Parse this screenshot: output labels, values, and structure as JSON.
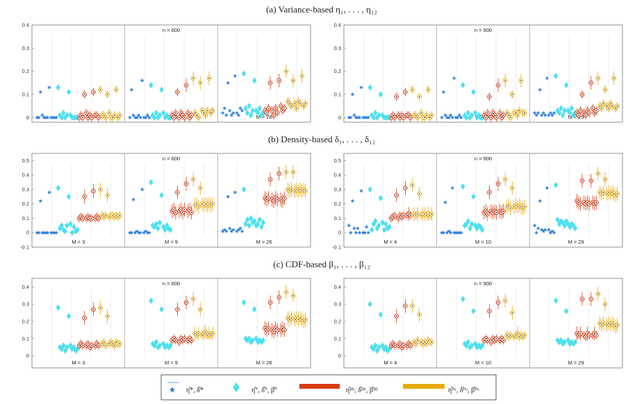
{
  "colors": {
    "star": "#2f7fe0",
    "diamond": "#4fe0ee",
    "bb": "#d93b14",
    "pu": "#e8ab0a",
    "grid": "#e2e2e2",
    "separator": "#999999",
    "axis": "#777777"
  },
  "chart_data": {
    "type": "scatter",
    "ylim_rows": [
      [
        -0.02,
        0.4
      ],
      [
        -0.1,
        0.55
      ],
      [
        -0.07,
        0.45
      ]
    ],
    "yticks_rows": [
      [
        "0",
        "0.1",
        "0.2",
        "0.3",
        "0.4"
      ],
      [
        "-0.1",
        "0",
        "0.1",
        "0.2",
        "0.3",
        "0.4",
        "0.5"
      ],
      [
        "0",
        "0.1",
        "0.2",
        "0.3",
        "0.4"
      ]
    ],
    "titles": [
      "(a) Variance-based η₁, . . . , η₁₂",
      "(b) Density-based δ₁, . . . , δ₁₂",
      "(c) CDF-based β₁, . . . , β₁₂"
    ],
    "panels": [
      {
        "n": "n = 600",
        "M": [
          "M = 3",
          "M = 9",
          "M = 26"
        ]
      },
      {
        "n": "n = 900",
        "M": [
          "M = 4",
          "M = 10",
          "M = 29"
        ]
      }
    ],
    "rows": [
      {
        "name": "variance",
        "cols": [
          {
            "star": [
              0,
              0,
              0.11,
              0.01,
              0,
              0,
              0,
              0.13,
              0,
              0,
              0,
              0
            ],
            "diamond": [
              0.13,
              0.01,
              0,
              0.02,
              0,
              0.01,
              0.11,
              0.01,
              0,
              0,
              0,
              0
            ],
            "bb": [
              0,
              0.01,
              0,
              0.1,
              0.02,
              0,
              0.01,
              0,
              0.11,
              0.01,
              0.01,
              0
            ],
            "pu": [
              0.12,
              0.01,
              0.01,
              0,
              0.1,
              0.02,
              0,
              0,
              0.01,
              0.12,
              0,
              0.01
            ]
          },
          {
            "star": [
              0,
              0.12,
              0.01,
              0,
              0,
              0.01,
              0,
              0.16,
              0,
              0,
              0.01,
              0
            ],
            "diamond": [
              0.14,
              0.01,
              0,
              0.02,
              0,
              0.01,
              0.12,
              0.02,
              0,
              0.01,
              0,
              0
            ],
            "bb": [
              0.01,
              0,
              0.02,
              0.11,
              0,
              0.02,
              0.01,
              0,
              0.14,
              0.02,
              0,
              0.01
            ],
            "pu": [
              0.17,
              0.02,
              0.01,
              0,
              0.15,
              0.03,
              0.02,
              0.01,
              0.03,
              0.17,
              0.02,
              0.03
            ]
          },
          {
            "star": [
              0.02,
              0.04,
              0.01,
              0.15,
              0.03,
              0.01,
              0.02,
              0.18,
              0.02,
              0.01,
              0.04,
              0.03
            ],
            "diamond": [
              0.19,
              0.04,
              0.02,
              0.05,
              0.01,
              0.03,
              0.16,
              0.03,
              0.02,
              0.04,
              0.01,
              0.02
            ],
            "bb": [
              0.03,
              0.02,
              0.04,
              0.15,
              0.03,
              0.01,
              0.04,
              0.02,
              0.16,
              0.05,
              0.03,
              0.04
            ],
            "pu": [
              0.2,
              0.07,
              0.06,
              0.05,
              0.16,
              0.06,
              0.04,
              0.07,
              0.06,
              0.18,
              0.05,
              0.06
            ]
          }
        ]
      },
      {
        "name": "variance",
        "cols": [
          {
            "star": [
              0,
              0,
              0.1,
              0.01,
              0,
              0,
              0,
              0.13,
              0,
              0,
              0,
              0
            ],
            "diamond": [
              0.13,
              0.01,
              0,
              0.02,
              0,
              0.01,
              0.1,
              0.01,
              0,
              0,
              0,
              0
            ],
            "bb": [
              0,
              0.01,
              0,
              0.09,
              0.01,
              0,
              0.01,
              0,
              0.11,
              0.01,
              0.01,
              0
            ],
            "pu": [
              0.12,
              0.01,
              0.01,
              0,
              0.09,
              0.02,
              0,
              0,
              0.01,
              0.12,
              0,
              0.01
            ]
          },
          {
            "star": [
              0,
              0.11,
              0.01,
              0,
              0,
              0.01,
              0,
              0.17,
              0,
              0,
              0.01,
              0
            ],
            "diamond": [
              0.14,
              0.01,
              0,
              0.02,
              0,
              0.01,
              0.11,
              0.02,
              0,
              0.01,
              0,
              0
            ],
            "bb": [
              0.01,
              0,
              0.02,
              0.09,
              0,
              0.02,
              0.01,
              0,
              0.14,
              0.02,
              0,
              0.01
            ],
            "pu": [
              0.16,
              0.02,
              0.01,
              0,
              0.1,
              0.02,
              0.02,
              0.01,
              0.03,
              0.16,
              0.02,
              0.02
            ]
          },
          {
            "star": [
              0.02,
              0.01,
              0.02,
              0.12,
              0.01,
              0.02,
              0.01,
              0.17,
              0.01,
              0.02,
              0.01,
              0.02
            ],
            "diamond": [
              0.18,
              0.03,
              0.02,
              0.04,
              0.01,
              0.03,
              0.14,
              0.03,
              0.02,
              0.04,
              0.01,
              0.02
            ],
            "bb": [
              0.02,
              0.01,
              0.03,
              0.1,
              0.02,
              0.01,
              0.03,
              0.02,
              0.15,
              0.04,
              0.02,
              0.03
            ],
            "pu": [
              0.17,
              0.05,
              0.04,
              0.06,
              0.12,
              0.05,
              0.04,
              0.06,
              0.05,
              0.17,
              0.04,
              0.05
            ]
          }
        ]
      },
      {
        "name": "density",
        "cols": [
          {
            "star": [
              0,
              0,
              0.22,
              0,
              0,
              0,
              0,
              0.28,
              0,
              0,
              0,
              0
            ],
            "diamond": [
              0.31,
              0.03,
              0.05,
              0.02,
              0.01,
              0.05,
              0.25,
              0.06,
              0,
              0.04,
              0.01,
              0.02
            ],
            "bb": [
              0.1,
              0.11,
              0.1,
              0.25,
              0.1,
              0.11,
              0.1,
              0.1,
              0.29,
              0.1,
              0.11,
              0.1
            ],
            "pu": [
              0.3,
              0.12,
              0.11,
              0.12,
              0.26,
              0.11,
              0.12,
              0.12,
              0.11,
              0.12,
              0.11,
              0.12
            ]
          },
          {
            "star": [
              0,
              0,
              0.23,
              0,
              0.01,
              0,
              0,
              0.3,
              0,
              0.01,
              0,
              0
            ],
            "diamond": [
              0.35,
              0.05,
              0.04,
              0.06,
              0.03,
              0.07,
              0.26,
              0.04,
              0.02,
              0.05,
              0.03,
              0.02
            ],
            "bb": [
              0.15,
              0.16,
              0.14,
              0.28,
              0.15,
              0.16,
              0.14,
              0.16,
              0.34,
              0.15,
              0.16,
              0.14
            ],
            "pu": [
              0.37,
              0.19,
              0.2,
              0.18,
              0.31,
              0.2,
              0.19,
              0.2,
              0.19,
              0.2,
              0.19,
              0.2
            ]
          },
          {
            "star": [
              0.01,
              0.02,
              0.01,
              0.25,
              0.03,
              0.01,
              0.02,
              0.28,
              0.01,
              0.02,
              0.03,
              0.01
            ],
            "diamond": [
              0.3,
              0.06,
              0.09,
              0.05,
              0.1,
              0.07,
              0.08,
              0.05,
              0.06,
              0.09,
              0.04,
              0.07
            ],
            "bb": [
              0.24,
              0.23,
              0.24,
              0.37,
              0.23,
              0.22,
              0.24,
              0.23,
              0.41,
              0.23,
              0.22,
              0.24
            ],
            "pu": [
              0.42,
              0.3,
              0.29,
              0.3,
              0.42,
              0.29,
              0.3,
              0.29,
              0.3,
              0.29,
              0.3,
              0.29
            ]
          }
        ]
      },
      {
        "name": "density",
        "cols": [
          {
            "star": [
              0.05,
              0,
              0.22,
              0.03,
              0,
              0.03,
              0,
              0.29,
              0,
              0,
              0.04,
              0
            ],
            "diamond": [
              0.3,
              0.02,
              0.06,
              0.08,
              0.03,
              0.05,
              0.24,
              0.07,
              0.02,
              0.06,
              0.03,
              0.04
            ],
            "bb": [
              0.1,
              0.11,
              0.12,
              0.26,
              0.1,
              0.12,
              0.11,
              0.12,
              0.31,
              0.12,
              0.13,
              0.12
            ],
            "pu": [
              0.33,
              0.13,
              0.12,
              0.13,
              0.27,
              0.12,
              0.13,
              0.13,
              0.12,
              0.13,
              0.12,
              0.13
            ]
          },
          {
            "star": [
              0,
              0,
              0.21,
              0,
              0.01,
              0,
              0.31,
              0,
              0,
              0,
              0,
              0
            ],
            "diamond": [
              0.32,
              0.05,
              0.06,
              0.08,
              0.03,
              0.06,
              0.25,
              0.05,
              0.03,
              0.05,
              0.04,
              0.02
            ],
            "bb": [
              0.14,
              0.15,
              0.13,
              0.28,
              0.15,
              0.14,
              0.15,
              0.14,
              0.34,
              0.15,
              0.14,
              0.15
            ],
            "pu": [
              0.37,
              0.18,
              0.19,
              0.17,
              0.31,
              0.18,
              0.19,
              0.18,
              0.19,
              0.18,
              0.17,
              0.18
            ]
          },
          {
            "star": [
              0.05,
              0,
              0.03,
              0.22,
              0.02,
              0.01,
              0.02,
              0.31,
              0.02,
              0,
              0.01,
              0
            ],
            "diamond": [
              0.33,
              0.09,
              0.06,
              0.08,
              0.07,
              0.05,
              0.08,
              0.06,
              0.04,
              0.06,
              0.05,
              0.03
            ],
            "bb": [
              0.22,
              0.21,
              0.2,
              0.36,
              0.21,
              0.2,
              0.21,
              0.2,
              0.36,
              0.21,
              0.2,
              0.21
            ],
            "pu": [
              0.41,
              0.28,
              0.27,
              0.28,
              0.37,
              0.27,
              0.28,
              0.27,
              0.28,
              0.27,
              0.26,
              0.27
            ]
          }
        ]
      },
      {
        "name": "cdf",
        "cols": [
          {
            "diamond": [
              0.28,
              0.05,
              0.04,
              0.06,
              0.03,
              0.05,
              0.23,
              0.06,
              0.04,
              0.05,
              0.03,
              0.04
            ],
            "bb": [
              0.06,
              0.07,
              0.06,
              0.22,
              0.06,
              0.07,
              0.05,
              0.06,
              0.27,
              0.06,
              0.07,
              0.06
            ],
            "pu": [
              0.28,
              0.07,
              0.08,
              0.06,
              0.23,
              0.07,
              0.08,
              0.07,
              0.06,
              0.08,
              0.07,
              0.07
            ]
          },
          {
            "diamond": [
              0.32,
              0.07,
              0.06,
              0.08,
              0.05,
              0.06,
              0.27,
              0.07,
              0.05,
              0.06,
              0.05,
              0.06
            ],
            "bb": [
              0.09,
              0.1,
              0.09,
              0.27,
              0.08,
              0.1,
              0.09,
              0.1,
              0.31,
              0.09,
              0.1,
              0.09
            ],
            "pu": [
              0.33,
              0.13,
              0.12,
              0.13,
              0.27,
              0.12,
              0.13,
              0.14,
              0.12,
              0.13,
              0.12,
              0.13
            ]
          },
          {
            "diamond": [
              0.31,
              0.1,
              0.09,
              0.1,
              0.08,
              0.09,
              0.27,
              0.1,
              0.08,
              0.09,
              0.08,
              0.09
            ],
            "bb": [
              0.16,
              0.15,
              0.16,
              0.31,
              0.15,
              0.14,
              0.16,
              0.15,
              0.34,
              0.15,
              0.16,
              0.15
            ],
            "pu": [
              0.37,
              0.22,
              0.21,
              0.22,
              0.35,
              0.21,
              0.22,
              0.21,
              0.22,
              0.21,
              0.2,
              0.21
            ]
          }
        ]
      },
      {
        "name": "cdf",
        "cols": [
          {
            "diamond": [
              0.3,
              0.05,
              0.04,
              0.06,
              0.03,
              0.05,
              0.24,
              0.06,
              0.04,
              0.05,
              0.03,
              0.04
            ],
            "bb": [
              0.06,
              0.07,
              0.06,
              0.23,
              0.06,
              0.07,
              0.05,
              0.06,
              0.29,
              0.06,
              0.07,
              0.06
            ],
            "pu": [
              0.29,
              0.08,
              0.07,
              0.09,
              0.24,
              0.08,
              0.07,
              0.08,
              0.07,
              0.09,
              0.08,
              0.08
            ]
          },
          {
            "diamond": [
              0.33,
              0.07,
              0.06,
              0.08,
              0.05,
              0.06,
              0.26,
              0.07,
              0.05,
              0.06,
              0.05,
              0.06
            ],
            "bb": [
              0.09,
              0.1,
              0.09,
              0.26,
              0.08,
              0.1,
              0.09,
              0.1,
              0.31,
              0.09,
              0.1,
              0.09
            ],
            "pu": [
              0.32,
              0.12,
              0.11,
              0.12,
              0.25,
              0.11,
              0.12,
              0.13,
              0.11,
              0.12,
              0.11,
              0.12
            ]
          },
          {
            "diamond": [
              0.32,
              0.09,
              0.08,
              0.09,
              0.07,
              0.08,
              0.26,
              0.09,
              0.07,
              0.08,
              0.07,
              0.08
            ],
            "bb": [
              0.13,
              0.12,
              0.13,
              0.33,
              0.12,
              0.11,
              0.13,
              0.12,
              0.33,
              0.12,
              0.13,
              0.12
            ],
            "pu": [
              0.36,
              0.19,
              0.18,
              0.19,
              0.3,
              0.18,
              0.19,
              0.18,
              0.19,
              0.18,
              0.17,
              0.18
            ]
          }
        ]
      }
    ]
  },
  "legend": {
    "star_label": "η̂*, δ̂*",
    "diamond_label": "η̂°, δ̂°, β̂°",
    "bb_label": "η̂ᴮᵇ, δ̂ᴮᵇ, β̂ᴮᵇ",
    "pu_label": "η̂ᴾᵘ, δ̂ᴾᵘ, β̂ᴾᵘ"
  }
}
